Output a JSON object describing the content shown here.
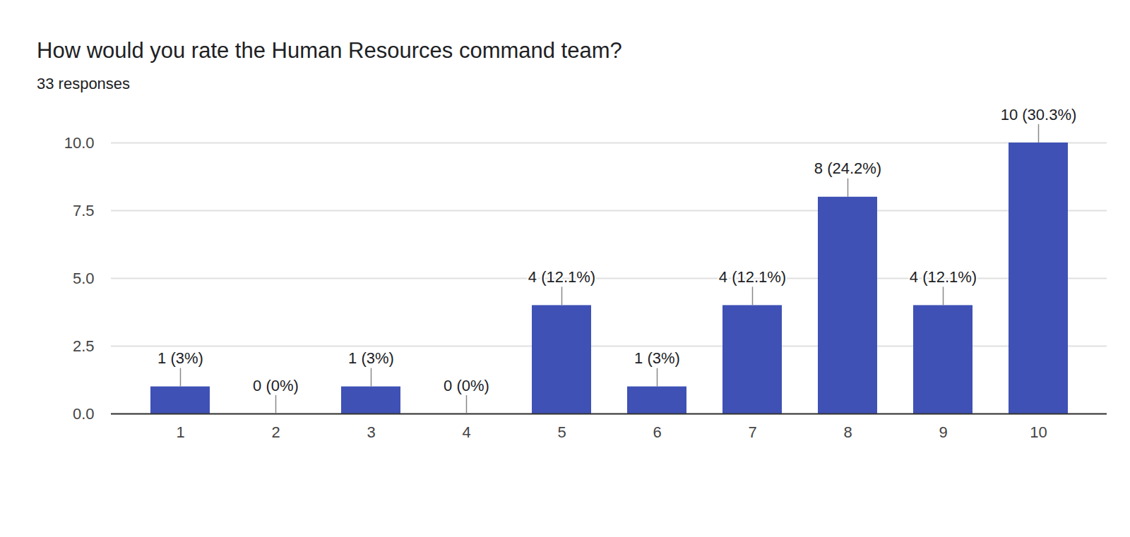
{
  "chart_data": {
    "type": "bar",
    "title": "How would you rate the Human Resources command team?",
    "subtitle": "33 responses",
    "categories": [
      "1",
      "2",
      "3",
      "4",
      "5",
      "6",
      "7",
      "8",
      "9",
      "10"
    ],
    "values": [
      1,
      0,
      1,
      0,
      4,
      1,
      4,
      8,
      4,
      10
    ],
    "value_labels": [
      "1 (3%)",
      "0 (0%)",
      "1 (3%)",
      "0 (0%)",
      "4 (12.1%)",
      "1 (3%)",
      "4 (12.1%)",
      "8 (24.2%)",
      "4 (12.1%)",
      "10 (30.3%)"
    ],
    "color": "#3f51b5",
    "ylim": [
      0,
      10
    ],
    "yticks": [
      {
        "value": 0,
        "label": "0.0"
      },
      {
        "value": 2.5,
        "label": "2.5"
      },
      {
        "value": 5,
        "label": "5.0"
      },
      {
        "value": 7.5,
        "label": "7.5"
      },
      {
        "value": 10,
        "label": "10.0"
      }
    ],
    "grid": true,
    "data_labels": true
  }
}
